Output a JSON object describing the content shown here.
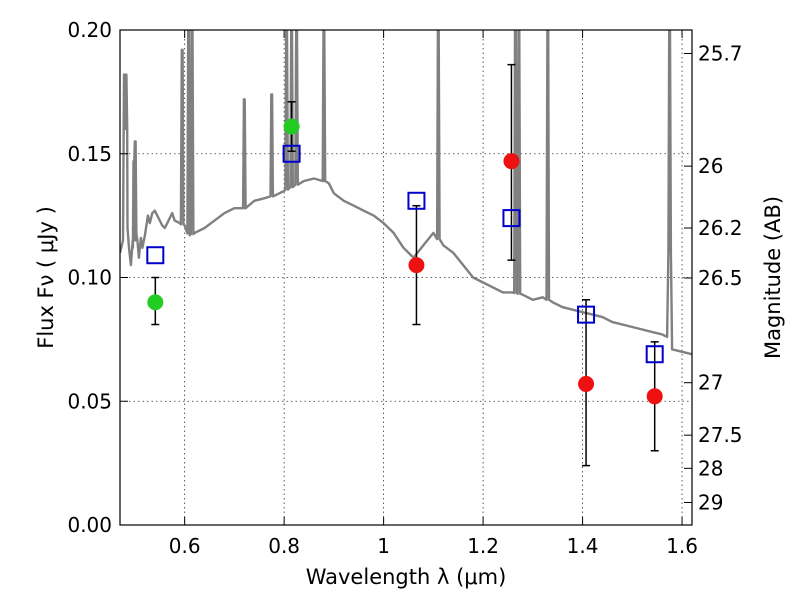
{
  "chart_data": {
    "type": "scatter",
    "xlabel": "Wavelength  λ (μm)",
    "ylabel": "Flux  Fν ( μJy )",
    "ylabel_right": "Magnitude (AB)",
    "xlim": [
      0.47,
      1.62
    ],
    "ylim": [
      0.0,
      0.2
    ],
    "grid": true,
    "x_ticks": [
      {
        "value": 0.6,
        "label": "0.6"
      },
      {
        "value": 0.8,
        "label": "0.8"
      },
      {
        "value": 1.0,
        "label": "1"
      },
      {
        "value": 1.2,
        "label": "1.2"
      },
      {
        "value": 1.4,
        "label": "1.4"
      },
      {
        "value": 1.6,
        "label": "1.6"
      }
    ],
    "y_ticks": [
      {
        "value": 0.0,
        "label": "0.00"
      },
      {
        "value": 0.05,
        "label": "0.05"
      },
      {
        "value": 0.1,
        "label": "0.10"
      },
      {
        "value": 0.15,
        "label": "0.15"
      },
      {
        "value": 0.2,
        "label": "0.20"
      }
    ],
    "right_ticks": [
      {
        "flux": 0.1905,
        "label": "25.7"
      },
      {
        "flux": 0.145,
        "label": "26"
      },
      {
        "flux": 0.12,
        "label": "26.2"
      },
      {
        "flux": 0.0998,
        "label": "26.5"
      },
      {
        "flux": 0.0575,
        "label": "27"
      },
      {
        "flux": 0.0363,
        "label": "27.5"
      },
      {
        "flux": 0.0229,
        "label": "28"
      },
      {
        "flux": 0.0091,
        "label": "29"
      }
    ],
    "series": [
      {
        "name": "model spectrum",
        "kind": "line",
        "color": "#808080",
        "x": [
          0.47,
          0.476,
          0.478,
          0.482,
          0.485,
          0.488,
          0.492,
          0.496,
          0.5,
          0.505,
          0.508,
          0.512,
          0.515,
          0.52,
          0.526,
          0.53,
          0.535,
          0.54,
          0.545,
          0.55,
          0.555,
          0.56,
          0.565,
          0.57,
          0.575,
          0.58,
          0.59,
          0.6,
          0.61,
          0.62,
          0.64,
          0.66,
          0.68,
          0.7,
          0.72,
          0.74,
          0.76,
          0.78,
          0.8,
          0.82,
          0.84,
          0.86,
          0.88,
          0.89,
          0.9,
          0.92,
          0.94,
          0.96,
          0.98,
          1.0,
          1.02,
          1.04,
          1.06,
          1.08,
          1.1,
          1.12,
          1.14,
          1.16,
          1.18,
          1.2,
          1.22,
          1.24,
          1.26,
          1.28,
          1.3,
          1.32,
          1.34,
          1.36,
          1.38,
          1.4,
          1.42,
          1.44,
          1.46,
          1.48,
          1.5,
          1.52,
          1.54,
          1.56,
          1.57,
          1.575,
          1.58,
          1.6,
          1.62
        ],
        "y": [
          0.11,
          0.115,
          0.182,
          0.16,
          0.12,
          0.112,
          0.105,
          0.112,
          0.118,
          0.115,
          0.108,
          0.116,
          0.112,
          0.117,
          0.125,
          0.122,
          0.126,
          0.127,
          0.125,
          0.123,
          0.121,
          0.12,
          0.122,
          0.124,
          0.126,
          0.123,
          0.122,
          0.121,
          0.117,
          0.118,
          0.12,
          0.123,
          0.126,
          0.128,
          0.128,
          0.131,
          0.132,
          0.133,
          0.135,
          0.137,
          0.139,
          0.14,
          0.139,
          0.138,
          0.134,
          0.131,
          0.129,
          0.127,
          0.125,
          0.122,
          0.118,
          0.112,
          0.108,
          0.113,
          0.118,
          0.113,
          0.11,
          0.105,
          0.1,
          0.098,
          0.096,
          0.094,
          0.094,
          0.093,
          0.091,
          0.092,
          0.09,
          0.088,
          0.087,
          0.086,
          0.085,
          0.084,
          0.082,
          0.081,
          0.08,
          0.079,
          0.078,
          0.077,
          0.076,
          0.11,
          0.071,
          0.07,
          0.069
        ]
      },
      {
        "name": "model band flux",
        "kind": "open-square",
        "color": "#0000cc",
        "x": [
          0.541,
          0.815,
          1.066,
          1.257,
          1.407,
          1.545
        ],
        "y": [
          0.109,
          0.15,
          0.131,
          0.124,
          0.085,
          0.069
        ]
      },
      {
        "name": "observed flux (green)",
        "kind": "filled-circle",
        "color": "#22cc22",
        "x": [
          0.541,
          0.815
        ],
        "y": [
          0.09,
          0.161
        ],
        "err_low": [
          0.081,
          0.151
        ],
        "err_high": [
          0.1,
          0.171
        ]
      },
      {
        "name": "observed flux (red)",
        "kind": "filled-circle",
        "color": "#ee1111",
        "x": [
          1.066,
          1.257,
          1.407,
          1.545
        ],
        "y": [
          0.105,
          0.147,
          0.057,
          0.052
        ],
        "err_low": [
          0.081,
          0.107,
          0.024,
          0.03
        ],
        "err_high": [
          0.129,
          0.186,
          0.091,
          0.074
        ]
      }
    ],
    "emission_lines": [
      {
        "x": 0.482,
        "peak": 0.182
      },
      {
        "x": 0.498,
        "peak": 0.147
      },
      {
        "x": 0.5005,
        "peak": 0.155
      },
      {
        "x": 0.595,
        "peak": 0.192
      },
      {
        "x": 0.608,
        "peak": 0.2
      },
      {
        "x": 0.615,
        "peak": 0.2
      },
      {
        "x": 0.72,
        "peak": 0.172
      },
      {
        "x": 0.775,
        "peak": 0.174
      },
      {
        "x": 0.805,
        "peak": 0.2
      },
      {
        "x": 0.815,
        "peak": 0.2
      },
      {
        "x": 0.825,
        "peak": 0.2
      },
      {
        "x": 0.88,
        "peak": 0.2
      },
      {
        "x": 1.11,
        "peak": 0.2
      },
      {
        "x": 1.265,
        "peak": 0.2
      },
      {
        "x": 1.272,
        "peak": 0.2
      },
      {
        "x": 1.33,
        "peak": 0.2
      },
      {
        "x": 1.575,
        "peak": 0.2
      }
    ]
  }
}
